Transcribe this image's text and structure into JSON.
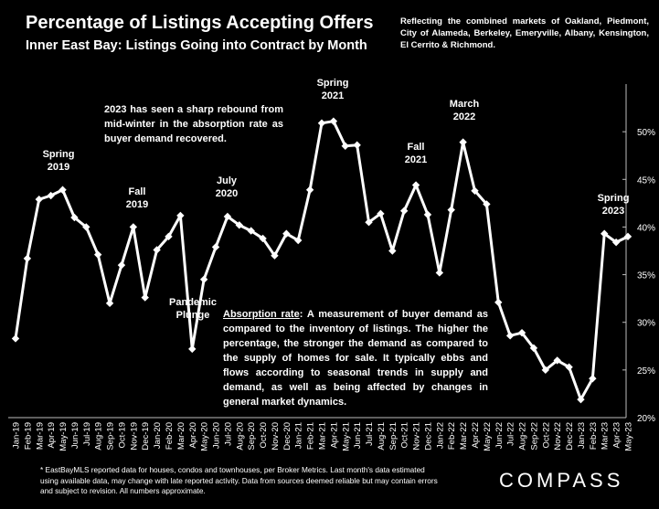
{
  "header": {
    "title": "Percentage of Listings Accepting Offers",
    "subtitle": "Inner East Bay: Listings Going into Contract by Month",
    "note": "Reflecting the combined markets of Oakland, Piedmont, City of Alameda, Berkeley, Emeryville, Albany, Kensington, El Cerrito & Richmond."
  },
  "annotations": {
    "spring2019": [
      "Spring",
      "2019"
    ],
    "fall2019": [
      "Fall",
      "2019"
    ],
    "pandemic": [
      "Pandemic",
      "Plunge"
    ],
    "july2020": [
      "July",
      "2020"
    ],
    "spring2021": [
      "Spring",
      "2021"
    ],
    "fall2021": [
      "Fall",
      "2021"
    ],
    "march2022": [
      "March",
      "2022"
    ],
    "spring2023": [
      "Spring",
      "2023"
    ],
    "rebound": "2023 has seen a sharp rebound from mid-winter in the absorption rate as buyer demand recovered.",
    "absorption_term": "Absorption rate",
    "absorption_text": ":  A measurement of buyer demand as compared to the inventory of listings. The higher the percentage, the stronger the demand as compared to the supply of homes for sale. It typically ebbs and flows according to seasonal trends in supply and demand, as well as being affected by changes in general market dynamics."
  },
  "footer": {
    "footnote": "* EastBayMLS reported data for houses, condos and townhouses, per Broker Metrics. Last month's data estimated using available data, may change with late reported activity. Data from sources deemed reliable but may contain errors and subject to revision. All numbers approximate.",
    "brand": "COMPASS"
  },
  "colors": {
    "background": "#000000",
    "line": "#ffffff",
    "text": "#ffffff"
  },
  "chart_data": {
    "type": "line",
    "title": "Percentage of Listings Accepting Offers",
    "ylim": [
      20,
      55
    ],
    "yticks": [
      20,
      25,
      30,
      35,
      40,
      45,
      50
    ],
    "ytick_labels": [
      "20%",
      "25%",
      "30%",
      "35%",
      "40%",
      "45%",
      "50%"
    ],
    "grid": false,
    "categories": [
      "Jan-19",
      "Feb-19",
      "Mar-19",
      "Apr-19",
      "May-19",
      "Jun-19",
      "Jul-19",
      "Aug-19",
      "Sep-19",
      "Oct-19",
      "Nov-19",
      "Dec-19",
      "Jan-20",
      "Feb-20",
      "Mar-20",
      "Apr-20",
      "May-20",
      "Jun-20",
      "Jul-20",
      "Aug-20",
      "Sep-20",
      "Oct-20",
      "Nov-20",
      "Dec-20",
      "Jan-21",
      "Feb-21",
      "Mar-21",
      "Apr-21",
      "May-21",
      "Jun-21",
      "Jul-21",
      "Aug-21",
      "Sep-21",
      "Oct-21",
      "Nov-21",
      "Dec-21",
      "Jan-22",
      "Feb-22",
      "Mar-22",
      "Apr-22",
      "May-22",
      "Jun-22",
      "Jul-22",
      "Aug-22",
      "Sep-22",
      "Oct-22",
      "Nov-22",
      "Dec-22",
      "Jan-23",
      "Feb-23",
      "Mar-23",
      "Apr-23",
      "May-23"
    ],
    "values": [
      28.3,
      36.7,
      42.9,
      43.3,
      43.9,
      41.0,
      40.0,
      37.1,
      32.0,
      36.0,
      40.0,
      32.6,
      37.6,
      39.0,
      41.2,
      27.2,
      34.5,
      37.9,
      41.1,
      40.2,
      39.6,
      38.8,
      37.0,
      39.3,
      38.6,
      43.9,
      50.9,
      51.1,
      48.5,
      48.6,
      40.5,
      41.4,
      37.5,
      41.7,
      44.4,
      41.3,
      35.2,
      41.8,
      48.9,
      43.8,
      42.4,
      32.1,
      28.6,
      28.9,
      27.3,
      25.0,
      26.0,
      25.3,
      21.9,
      24.1,
      39.3,
      38.4,
      39.0
    ]
  }
}
